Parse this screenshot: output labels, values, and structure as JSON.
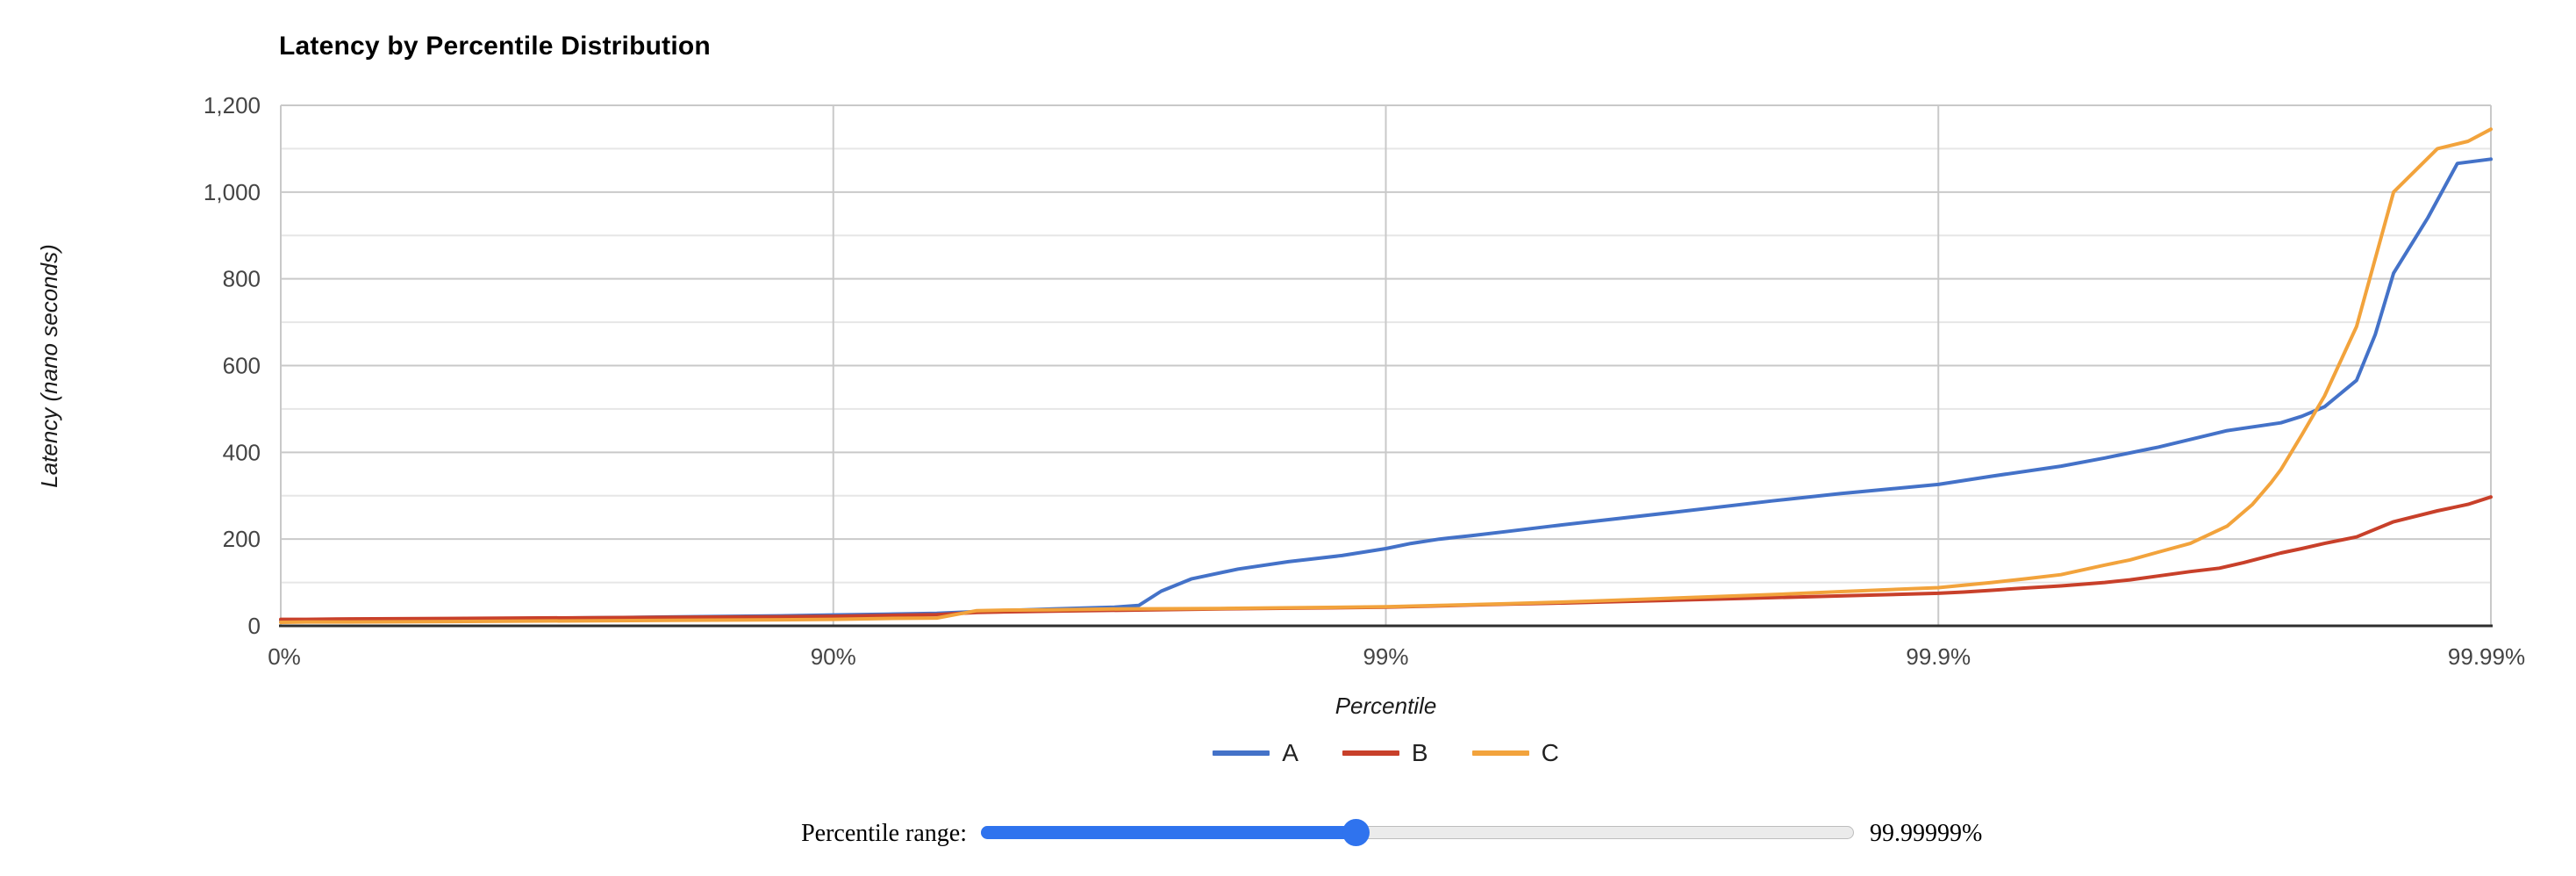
{
  "chart_data": {
    "type": "line",
    "title": "Latency by Percentile Distribution",
    "xlabel": "Percentile",
    "ylabel": "Latency (nano seconds)",
    "x_scale": "log10(1/(1-p)), 0 to 4 decades",
    "x_ticks": [
      "0%",
      "90%",
      "99%",
      "99.9%",
      "99.99%"
    ],
    "y_tick_labels": [
      "0",
      "200",
      "400",
      "600",
      "800",
      "1,000",
      "1,200"
    ],
    "ylim": [
      0,
      1200
    ],
    "grid": {
      "major_color": "#c9c9c9",
      "minor_color": "#e6e6e6",
      "axis_color": "#2e2e2e"
    },
    "legend_position": "bottom-center",
    "series": [
      {
        "name": "A",
        "color": "#4472c8",
        "points": [
          [
            0,
            13
          ],
          [
            10,
            14
          ],
          [
            25,
            15
          ],
          [
            50,
            16
          ],
          [
            75,
            19
          ],
          [
            87.5,
            23
          ],
          [
            90,
            25
          ],
          [
            92,
            27
          ],
          [
            93.5,
            29
          ],
          [
            94.5,
            33
          ],
          [
            95,
            35
          ],
          [
            96,
            39
          ],
          [
            96.9,
            43
          ],
          [
            97.2,
            47
          ],
          [
            97.45,
            80
          ],
          [
            97.75,
            108
          ],
          [
            98.15,
            131
          ],
          [
            98.5,
            148
          ],
          [
            98.8,
            162
          ],
          [
            99,
            178
          ],
          [
            99.1,
            190
          ],
          [
            99.2,
            200
          ],
          [
            99.3,
            208
          ],
          [
            99.4,
            218
          ],
          [
            99.5,
            230
          ],
          [
            99.6,
            244
          ],
          [
            99.7,
            262
          ],
          [
            99.8,
            288
          ],
          [
            99.85,
            305
          ],
          [
            99.9,
            326
          ],
          [
            99.92,
            345
          ],
          [
            99.94,
            368
          ],
          [
            99.95,
            387
          ],
          [
            99.96,
            412
          ],
          [
            99.97,
            450
          ],
          [
            99.976,
            468
          ],
          [
            99.978,
            483
          ],
          [
            99.98,
            505
          ],
          [
            99.9825,
            566
          ],
          [
            99.9838,
            671
          ],
          [
            99.985,
            813
          ],
          [
            99.987,
            941
          ],
          [
            99.9885,
            1066
          ],
          [
            99.99,
            1076
          ]
        ]
      },
      {
        "name": "B",
        "color": "#c8402a",
        "points": [
          [
            0,
            15
          ],
          [
            10,
            15
          ],
          [
            25,
            16
          ],
          [
            50,
            17
          ],
          [
            75,
            19
          ],
          [
            87.5,
            21
          ],
          [
            90,
            22
          ],
          [
            92,
            24
          ],
          [
            93.5,
            26
          ],
          [
            94.5,
            31
          ],
          [
            95,
            32
          ],
          [
            96,
            34
          ],
          [
            97,
            36
          ],
          [
            98,
            39
          ],
          [
            99,
            43
          ],
          [
            99.2,
            46
          ],
          [
            99.3,
            48
          ],
          [
            99.4,
            50
          ],
          [
            99.5,
            52
          ],
          [
            99.6,
            55
          ],
          [
            99.7,
            59
          ],
          [
            99.8,
            65
          ],
          [
            99.9,
            75
          ],
          [
            99.91,
            78
          ],
          [
            99.92,
            82
          ],
          [
            99.93,
            87
          ],
          [
            99.94,
            92
          ],
          [
            99.95,
            100
          ],
          [
            99.955,
            106
          ],
          [
            99.96,
            115
          ],
          [
            99.965,
            125
          ],
          [
            99.969,
            133
          ],
          [
            99.972,
            146
          ],
          [
            99.976,
            168
          ],
          [
            99.978,
            178
          ],
          [
            99.98,
            190
          ],
          [
            99.9825,
            205
          ],
          [
            99.985,
            240
          ],
          [
            99.9875,
            265
          ],
          [
            99.989,
            280
          ],
          [
            99.99,
            297
          ]
        ]
      },
      {
        "name": "C",
        "color": "#f2a33c",
        "points": [
          [
            0,
            8
          ],
          [
            10,
            9
          ],
          [
            25,
            9
          ],
          [
            50,
            10
          ],
          [
            75,
            12
          ],
          [
            87.5,
            14
          ],
          [
            90,
            15
          ],
          [
            92,
            17
          ],
          [
            93.5,
            18
          ],
          [
            94.5,
            35
          ],
          [
            95,
            36
          ],
          [
            96,
            37
          ],
          [
            97,
            39
          ],
          [
            98,
            40
          ],
          [
            99,
            44
          ],
          [
            99.2,
            47
          ],
          [
            99.4,
            51
          ],
          [
            99.5,
            54
          ],
          [
            99.6,
            58
          ],
          [
            99.7,
            64
          ],
          [
            99.8,
            72
          ],
          [
            99.85,
            79
          ],
          [
            99.9,
            88
          ],
          [
            99.92,
            100
          ],
          [
            99.93,
            108
          ],
          [
            99.94,
            118
          ],
          [
            99.95,
            140
          ],
          [
            99.955,
            152
          ],
          [
            99.96,
            170
          ],
          [
            99.965,
            190
          ],
          [
            99.97,
            230
          ],
          [
            99.973,
            280
          ],
          [
            99.975,
            330
          ],
          [
            99.976,
            360
          ],
          [
            99.978,
            440
          ],
          [
            99.98,
            530
          ],
          [
            99.9825,
            690
          ],
          [
            99.985,
            1000
          ],
          [
            99.9875,
            1100
          ],
          [
            99.989,
            1117
          ],
          [
            99.99,
            1145
          ]
        ]
      }
    ]
  },
  "ui": {
    "slider": {
      "label": "Percentile range:",
      "value_label": "99.99999%",
      "fraction": 0.43,
      "fill_color": "#2f73ee",
      "track_color": "#ebebeb"
    }
  }
}
